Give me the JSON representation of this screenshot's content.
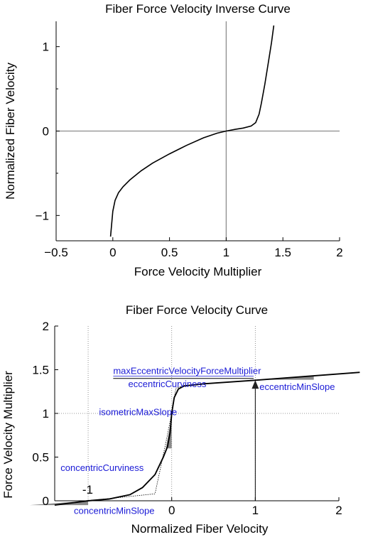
{
  "chart_data": [
    {
      "type": "line",
      "title": "Fiber Force Velocity Inverse Curve",
      "xlabel": "Force Velocity Multiplier",
      "ylabel": "Normalized Fiber Velocity",
      "xlim": [
        -0.5,
        2
      ],
      "ylim": [
        -1.3,
        1.3
      ],
      "xticks": [
        -0.5,
        0,
        0.5,
        1,
        1.5,
        2
      ],
      "xtick_labels": [
        "−0.5",
        "0",
        "0.5",
        "1",
        "1.5",
        "2"
      ],
      "yticks": [
        -1,
        0,
        1
      ],
      "ytick_labels": [
        "−1",
        "0",
        "1"
      ],
      "reference_lines": {
        "x": 1,
        "y": 0
      },
      "series": [
        {
          "values": [
            {
              "x": -0.02,
              "y": -1.25
            },
            {
              "x": -0.01,
              "y": -1.1
            },
            {
              "x": 0.0,
              "y": -0.95
            },
            {
              "x": 0.02,
              "y": -0.82
            },
            {
              "x": 0.05,
              "y": -0.73
            },
            {
              "x": 0.09,
              "y": -0.66
            },
            {
              "x": 0.15,
              "y": -0.58
            },
            {
              "x": 0.25,
              "y": -0.47
            },
            {
              "x": 0.35,
              "y": -0.38
            },
            {
              "x": 0.5,
              "y": -0.27
            },
            {
              "x": 0.65,
              "y": -0.17
            },
            {
              "x": 0.8,
              "y": -0.08
            },
            {
              "x": 0.92,
              "y": -0.025
            },
            {
              "x": 1.0,
              "y": 0.0
            },
            {
              "x": 1.08,
              "y": 0.02
            },
            {
              "x": 1.15,
              "y": 0.035
            },
            {
              "x": 1.22,
              "y": 0.06
            },
            {
              "x": 1.26,
              "y": 0.1
            },
            {
              "x": 1.29,
              "y": 0.2
            },
            {
              "x": 1.31,
              "y": 0.33
            },
            {
              "x": 1.34,
              "y": 0.55
            },
            {
              "x": 1.37,
              "y": 0.8
            },
            {
              "x": 1.4,
              "y": 1.05
            },
            {
              "x": 1.42,
              "y": 1.25
            }
          ]
        }
      ]
    },
    {
      "type": "line",
      "title": "Fiber Force Velocity Curve",
      "xlabel": "Normalized Fiber Velocity",
      "ylabel": "Force Velocity Multiplier",
      "xlim": [
        -1.4,
        2
      ],
      "ylim": [
        0,
        2
      ],
      "xticks": [
        0,
        1,
        2
      ],
      "xtick_labels": [
        "0",
        "1",
        "2"
      ],
      "yticks": [
        0,
        0.5,
        1,
        1.5,
        2
      ],
      "ytick_labels": [
        "0",
        "0.5",
        "1",
        "1.5",
        "2"
      ],
      "reference_lines": {
        "x": [
          -1,
          0,
          1
        ],
        "y": [
          1
        ]
      },
      "series": [
        {
          "values": [
            {
              "x": -1.4,
              "y": -0.05
            },
            {
              "x": -1.0,
              "y": 0.0
            },
            {
              "x": -0.75,
              "y": 0.02
            },
            {
              "x": -0.5,
              "y": 0.07
            },
            {
              "x": -0.35,
              "y": 0.15
            },
            {
              "x": -0.2,
              "y": 0.3
            },
            {
              "x": -0.1,
              "y": 0.5
            },
            {
              "x": -0.05,
              "y": 0.62
            },
            {
              "x": -0.02,
              "y": 0.78
            },
            {
              "x": 0.0,
              "y": 1.0
            },
            {
              "x": 0.03,
              "y": 1.18
            },
            {
              "x": 0.08,
              "y": 1.28
            },
            {
              "x": 0.15,
              "y": 1.315
            },
            {
              "x": 0.4,
              "y": 1.34
            },
            {
              "x": 1.0,
              "y": 1.38
            },
            {
              "x": 1.7,
              "y": 1.43
            },
            {
              "x": 2.25,
              "y": 1.47
            }
          ]
        }
      ],
      "construction_line": [
        {
          "x": -1.0,
          "y": 0.0
        },
        {
          "x": -0.2,
          "y": 0.08
        },
        {
          "x": -0.08,
          "y": 0.62
        },
        {
          "x": 0.0,
          "y": 1.0
        },
        {
          "x": 0.05,
          "y": 1.29
        },
        {
          "x": 0.15,
          "y": 1.32
        }
      ],
      "slope_patches": [
        [
          {
            "x": -1.0,
            "y": 0.0
          },
          {
            "x": -1.7,
            "y": -0.05
          },
          {
            "x": -1.0,
            "y": -0.05
          }
        ],
        [
          {
            "x": 0.0,
            "y": 0.6
          },
          {
            "x": 0.0,
            "y": 0.97
          },
          {
            "x": -0.07,
            "y": 0.6
          }
        ],
        [
          {
            "x": 1.0,
            "y": 1.385
          },
          {
            "x": 1.7,
            "y": 1.43
          },
          {
            "x": 1.7,
            "y": 1.385
          }
        ]
      ],
      "max_eccentric_line": {
        "x": [
          -0.7,
          0.98
        ],
        "y": 1.4
      },
      "annotations": [
        {
          "text": "maxEccentricVelocityForceMultiplier",
          "x": -0.7,
          "y": 1.45
        },
        {
          "text": "eccentricCurviness",
          "x": -0.52,
          "y": 1.3
        },
        {
          "text": "eccentricMinSlope",
          "x": 1.05,
          "y": 1.27
        },
        {
          "text": "isometricMaxSlope",
          "x": -0.87,
          "y": 0.98
        },
        {
          "text": "concentricCurviness",
          "x": -1.33,
          "y": 0.34
        },
        {
          "text": "-1",
          "x": -1.07,
          "y": 0.08
        },
        {
          "text": "concentricMinSlope",
          "x": -1.17,
          "y": -0.15
        }
      ],
      "arrow": {
        "from": {
          "x": 1.0,
          "y": 0.0
        },
        "to": {
          "x": 1.0,
          "y": 1.38
        }
      }
    }
  ]
}
